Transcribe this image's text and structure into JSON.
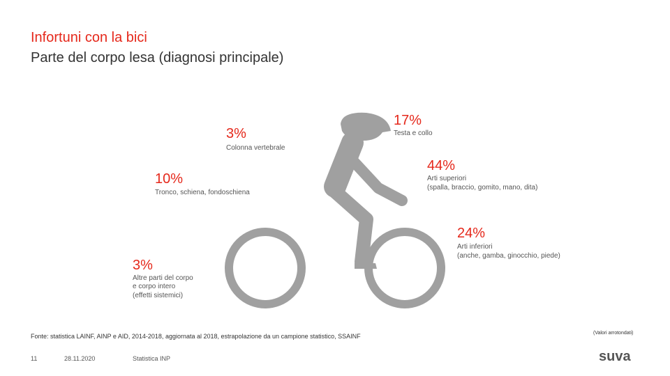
{
  "header": {
    "title": "Infortuni con la bici",
    "subtitle": "Parte del corpo lesa (diagnosi principale)"
  },
  "items": [
    {
      "pct": "17%",
      "label": "Testa e collo"
    },
    {
      "pct": "3%",
      "label": "Colonna vertebrale"
    },
    {
      "pct": "44%",
      "label_lines": [
        "Arti superiori",
        "(spalla, braccio, gomito, mano, dita)"
      ]
    },
    {
      "pct": "10%",
      "label": "Tronco, schiena, fondoschiena"
    },
    {
      "pct": "24%",
      "label_lines": [
        "Arti inferiori",
        "(anche, gamba, ginocchio, piede)"
      ]
    },
    {
      "pct": "3%",
      "label_lines": [
        "Altre parti del corpo",
        "e corpo intero",
        "(effetti sistemici)"
      ]
    }
  ],
  "footer": {
    "source": "Fonte: statistica LAINF, AINP e AID, 2014-2018, aggiornata al 2018, estrapolazione da un campione statistico, SSAINF",
    "note": "(Valori arrotondati)",
    "page": "11",
    "date": "28.11.2020",
    "org": "Statistica INP",
    "logo": "suva"
  },
  "colors": {
    "accent": "#E5281B",
    "figure": "#A0A0A0",
    "text": "#333333"
  },
  "icons": {
    "figure": "cyclist-icon"
  }
}
